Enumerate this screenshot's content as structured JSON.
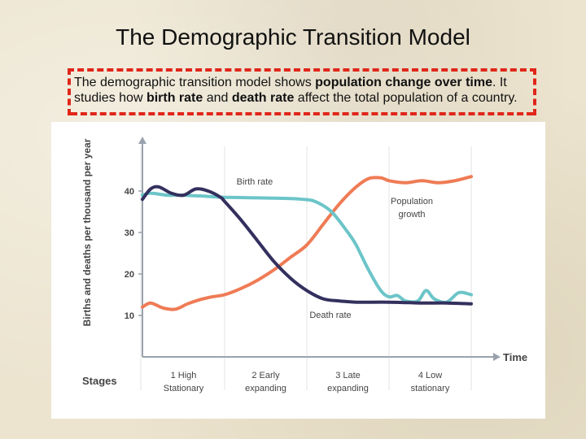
{
  "slide": {
    "title": "The Demographic Transition Model",
    "description": {
      "p1": "The demographic transition model shows ",
      "b1": "population change over time",
      "p2": ". It studies how ",
      "b2": "birth rate",
      "p3": " and ",
      "b3": "death rate",
      "p4": " affect the total population of a country."
    },
    "colors": {
      "highlight_border": "#e0261a"
    }
  },
  "chart_data": {
    "type": "line",
    "ylabel": "Births and deaths per thousand per year",
    "xlabel": "Time",
    "yticks": [
      10,
      20,
      30,
      40
    ],
    "ylim": [
      3,
      48
    ],
    "xlim": [
      0,
      4
    ],
    "grid": "vertical stage separators",
    "stages": [
      "1 High\nStationary",
      "2 Early\nexpanding",
      "3 Late\nexpanding",
      "4 Low\nstationary"
    ],
    "stages_label": "Stages",
    "series": [
      {
        "name": "Birth rate",
        "color": "#6cc5c8",
        "x": [
          0,
          0.1,
          0.3,
          0.5,
          0.8,
          1.0,
          1.3,
          1.6,
          1.8,
          1.95,
          2.1,
          2.3,
          2.5,
          2.6,
          2.75,
          2.9,
          3.0,
          3.1,
          3.2,
          3.35,
          3.45,
          3.55,
          3.7,
          3.85,
          4.0
        ],
        "values": [
          39,
          39.5,
          39,
          39,
          38.7,
          38.5,
          38.4,
          38.3,
          38.2,
          38.0,
          37.5,
          35,
          30,
          27,
          21,
          16,
          14.5,
          14.8,
          13.5,
          13.5,
          16,
          14,
          13.2,
          15.5,
          15
        ]
      },
      {
        "name": "Death rate",
        "color": "#33305e",
        "x": [
          0,
          0.1,
          0.2,
          0.35,
          0.5,
          0.65,
          0.8,
          0.95,
          1.0,
          1.2,
          1.4,
          1.6,
          1.8,
          2.0,
          2.2,
          2.4,
          2.6,
          3.0,
          3.4,
          3.7,
          4.0
        ],
        "values": [
          38,
          40.5,
          41,
          39.5,
          39,
          40.5,
          40,
          38.5,
          37.5,
          33,
          28,
          23,
          19,
          16,
          14,
          13.5,
          13.2,
          13.2,
          13.0,
          13.0,
          12.8
        ]
      },
      {
        "name": "Population growth",
        "color": "#ef7b55",
        "x": [
          0,
          0.1,
          0.25,
          0.4,
          0.55,
          0.7,
          0.85,
          1.0,
          1.2,
          1.4,
          1.6,
          1.8,
          2.0,
          2.2,
          2.4,
          2.6,
          2.75,
          2.9,
          3.0,
          3.2,
          3.4,
          3.6,
          3.8,
          4.0
        ],
        "values": [
          12,
          13,
          11.8,
          11.5,
          12.8,
          13.8,
          14.5,
          15,
          16.5,
          18.5,
          21,
          24,
          27,
          32,
          37,
          41,
          43,
          43.2,
          42.5,
          42,
          42.5,
          42,
          42.5,
          43.5
        ]
      }
    ],
    "annotations": [
      {
        "text": "Birth rate"
      },
      {
        "text": "Population\ngrowth"
      },
      {
        "text": "Death rate"
      }
    ]
  }
}
